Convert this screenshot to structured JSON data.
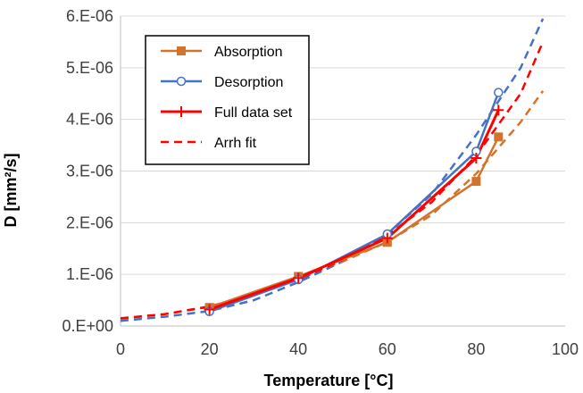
{
  "chart_data": {
    "type": "scatter",
    "xlabel": "Temperature [°C]",
    "ylabel": "D [mm²/s]",
    "xlim": [
      0,
      100
    ],
    "ylim": [
      0,
      6e-06
    ],
    "x_ticks": [
      0,
      20,
      40,
      60,
      80,
      100
    ],
    "y_ticks": [
      0,
      1e-06,
      2e-06,
      3e-06,
      4e-06,
      5e-06,
      6e-06
    ],
    "x_tick_labels": [
      "0",
      "20",
      "40",
      "60",
      "80",
      "100"
    ],
    "y_tick_labels": [
      "0.E+00",
      "1.E-06",
      "2.E-06",
      "3.E-06",
      "4.E-06",
      "5.E-06",
      "6.E-06"
    ],
    "grid": "horizontal",
    "legend_position": "top-left",
    "series": [
      {
        "name": "Absorption",
        "color": "#D4742C",
        "style": "solid",
        "marker": "square",
        "x": [
          20,
          40,
          60,
          80,
          85
        ],
        "y": [
          3.6e-07,
          9.6e-07,
          1.62e-06,
          2.8e-06,
          3.66e-06
        ]
      },
      {
        "name": "Desorption",
        "color": "#4472C4",
        "style": "solid",
        "marker": "circle-open",
        "x": [
          20,
          40,
          60,
          80,
          85
        ],
        "y": [
          2.8e-07,
          9e-07,
          1.78e-06,
          3.38e-06,
          4.52e-06
        ]
      },
      {
        "name": "Full data set",
        "color": "#FF0000",
        "style": "solid",
        "marker": "plus",
        "x": [
          20,
          40,
          60,
          80,
          85
        ],
        "y": [
          3.2e-07,
          9.3e-07,
          1.7e-06,
          3.25e-06,
          4.18e-06
        ]
      },
      {
        "name": "Arrh fit",
        "color": "#FF0000",
        "style": "dashed",
        "marker": "none",
        "x": [
          0,
          10,
          20,
          30,
          40,
          50,
          60,
          70,
          80,
          90,
          95
        ],
        "y": [
          1.5e-07,
          2.3e-07,
          3.8e-07,
          6e-07,
          9e-07,
          1.28e-06,
          1.75e-06,
          2.4e-06,
          3.3e-06,
          4.5e-06,
          5.5e-06
        ]
      }
    ],
    "extra_lines": [
      {
        "color": "#4472C4",
        "style": "dashed",
        "x": [
          0,
          10,
          20,
          30,
          40,
          50,
          60,
          70,
          80,
          90,
          95
        ],
        "y": [
          1e-07,
          1.8e-07,
          2.9e-07,
          5e-07,
          8.5e-07,
          1.25e-06,
          1.78e-06,
          2.55e-06,
          3.7e-06,
          5e-06,
          5.95e-06
        ]
      },
      {
        "color": "#D4742C",
        "style": "dashed",
        "x": [
          0,
          10,
          20,
          30,
          40,
          50,
          60,
          70,
          80,
          90,
          95
        ],
        "y": [
          1.4e-07,
          2.3e-07,
          3.7e-07,
          6.2e-07,
          9.5e-07,
          1.25e-06,
          1.63e-06,
          2.15e-06,
          2.95e-06,
          3.95e-06,
          4.55e-06
        ]
      }
    ]
  }
}
